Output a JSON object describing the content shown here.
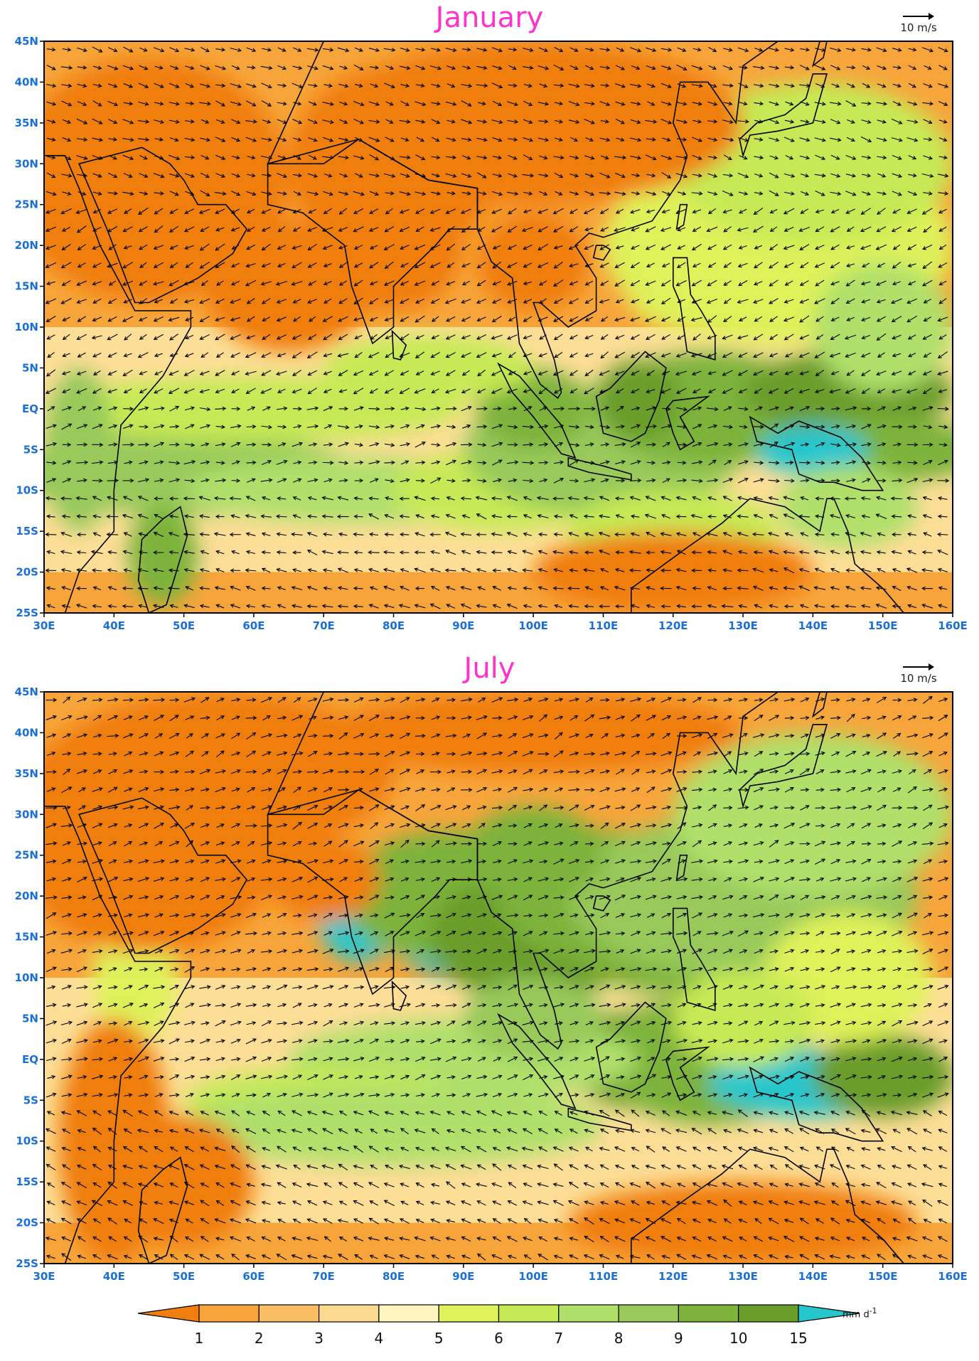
{
  "panels": [
    {
      "title": "January",
      "ref_vector_label": "10 m/s"
    },
    {
      "title": "July",
      "ref_vector_label": "10 m/s"
    }
  ],
  "map": {
    "lon_labels": [
      "30E",
      "40E",
      "50E",
      "60E",
      "70E",
      "80E",
      "90E",
      "100E",
      "110E",
      "120E",
      "130E",
      "140E",
      "150E",
      "160E"
    ],
    "lat_labels": [
      "45N",
      "40N",
      "35N",
      "30N",
      "25N",
      "20N",
      "15N",
      "10N",
      "5N",
      "EQ",
      "5S",
      "10S",
      "15S",
      "20S",
      "25S"
    ],
    "lon_range": [
      30,
      160
    ],
    "lat_range": [
      -25,
      45
    ]
  },
  "colorbar": {
    "ticks": [
      "1",
      "2",
      "3",
      "4",
      "5",
      "6",
      "7",
      "8",
      "9",
      "10",
      "15"
    ],
    "unit": "mm d",
    "unit_sup": "-1",
    "colors": [
      "#f07e0e",
      "#f7a53b",
      "#f9bd63",
      "#fbd98e",
      "#fff6bf",
      "#dff25a",
      "#c6ea55",
      "#b0e06a",
      "#98c95a",
      "#7db33a",
      "#6a9d2c",
      "#25c6cc"
    ]
  },
  "colors": {
    "title": "#ff33cc",
    "axis_labels": "#1a6fd6"
  }
}
